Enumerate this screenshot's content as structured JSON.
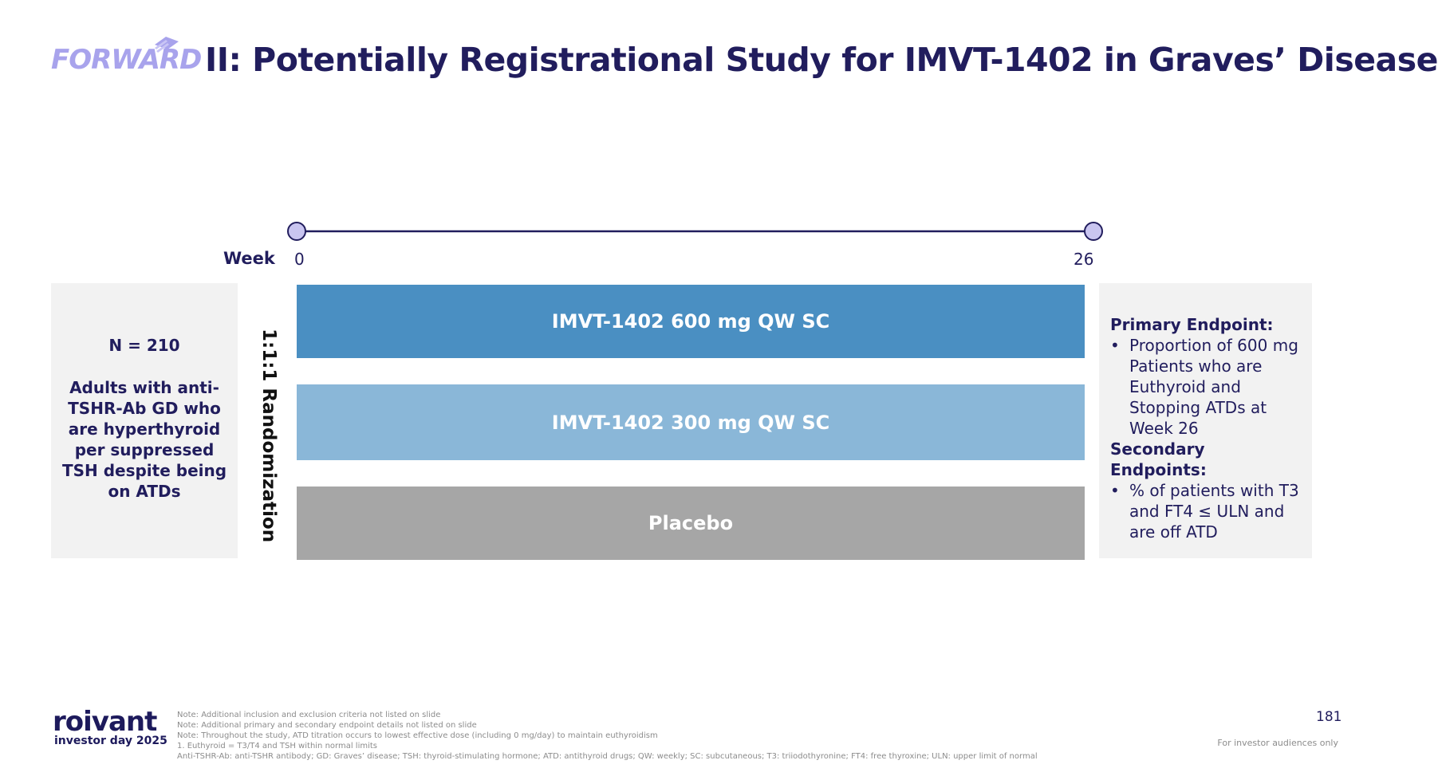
{
  "title": {
    "logo_text": "FORWARD",
    "text": "II: Potentially Registrational Study for IMVT-1402 in Graves’ Disease"
  },
  "timeline": {
    "week_label": "Week",
    "start_tick": "0",
    "end_tick": "26"
  },
  "population": {
    "n_label": "N = 210",
    "description": "Adults with anti-TSHR-Ab GD who are hyperthyroid per suppressed TSH despite being on ATDs"
  },
  "randomization_label": "1:1:1 Randomization",
  "arms": [
    {
      "label": "IMVT-1402 600 mg QW SC",
      "color": "#4a8fc2"
    },
    {
      "label": "IMVT-1402 300 mg QW SC",
      "color": "#8ab7d8"
    },
    {
      "label": "Placebo",
      "color": "#a6a6a6"
    }
  ],
  "endpoints": {
    "primary_heading": "Primary Endpoint:",
    "primary_items": [
      "Proportion of 600 mg Patients who are Euthyroid and Stopping ATDs at Week 26"
    ],
    "secondary_heading": "Secondary Endpoints:",
    "secondary_items": [
      "% of patients with T3 and FT4 ≤ ULN and are off ATD"
    ],
    "bullet_char": "•"
  },
  "footer": {
    "brand": "roivant",
    "event": "investor day 2025",
    "notes": [
      "Note: Additional inclusion and exclusion criteria not listed on slide",
      "Note: Additional primary and secondary endpoint details not listed on slide",
      "Note: Throughout the study, ATD titration occurs to lowest effective dose (including 0 mg/day) to maintain euthyroidism",
      "1. Euthyroid = T3/T4 and TSH within normal limits",
      "Anti-TSHR-Ab: anti-TSHR antibody; GD: Graves’ disease; TSH: thyroid-stimulating hormone; ATD: antithyroid drugs; QW: weekly; SC: subcutaneous; T3: triiodothyronine; FT4: free thyroxine; ULN: upper limit of normal"
    ],
    "page_number": "181",
    "audience": "For investor audiences only"
  },
  "colors": {
    "navy": "#211d5d",
    "lavender": "#a8a3ec",
    "panel": "#f2f2f2"
  }
}
